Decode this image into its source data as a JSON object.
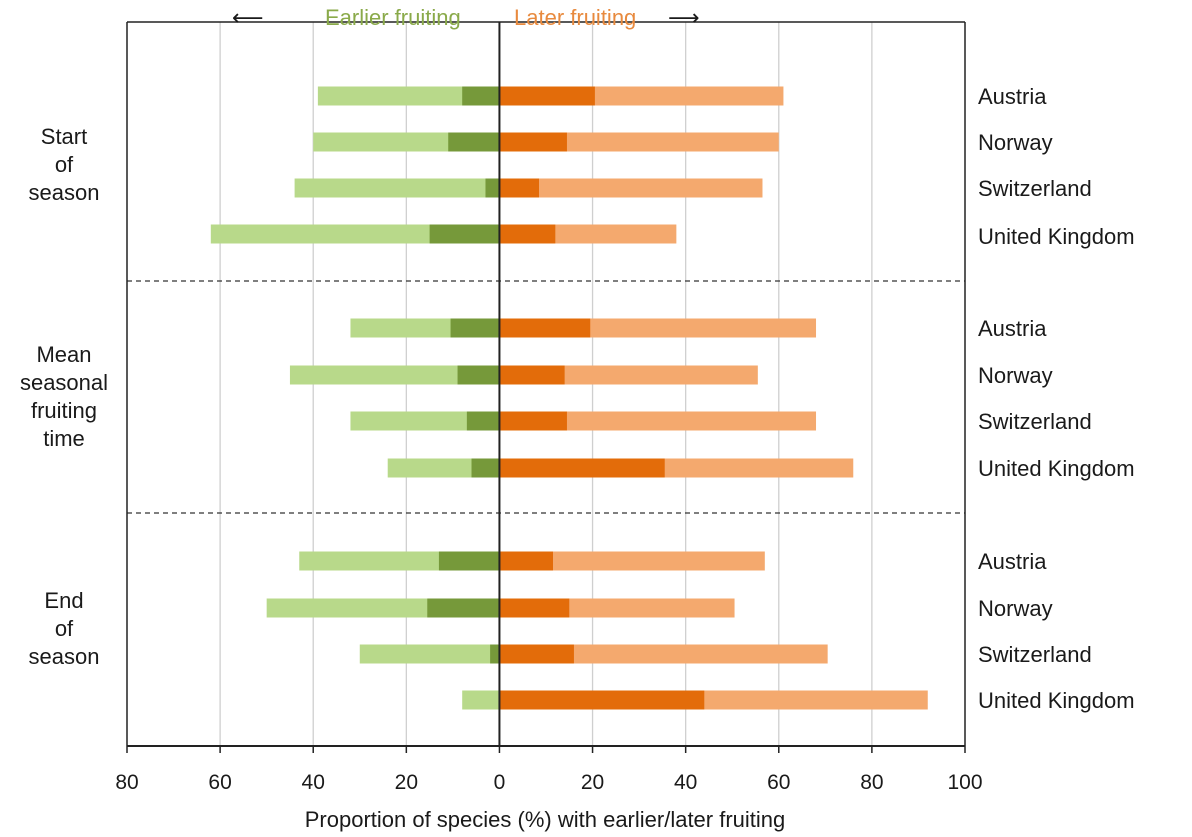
{
  "header": {
    "earlier_arrow": "⟵",
    "earlier_label": "Earlier fruiting",
    "later_label": "Later fruiting",
    "later_arrow": "⟶"
  },
  "chart_data": {
    "type": "bar",
    "orientation": "horizontal",
    "stacked": true,
    "xlabel": "Proportion of species (%) with earlier/later fruiting",
    "xlim": [
      -80,
      100
    ],
    "x_ticks": [
      -80,
      -60,
      -40,
      -20,
      0,
      20,
      40,
      60,
      80,
      100
    ],
    "x_tick_labels": [
      "80",
      "60",
      "40",
      "20",
      "0",
      "20",
      "40",
      "60",
      "80",
      "100"
    ],
    "grid": "vertical",
    "colors": {
      "earlier_significant": "#76993a",
      "earlier_total": "#b8d98a",
      "later_significant": "#e36c0a",
      "later_total": "#f4a96e",
      "earlier_text": "#8aaa4a",
      "later_text": "#e88a3e"
    },
    "groups": [
      {
        "label": "Start\nof\nseason",
        "rows": [
          {
            "country": "Austria",
            "earlier_total": 39,
            "earlier_significant": 8,
            "later_significant": 20.5,
            "later_total": 61
          },
          {
            "country": "Norway",
            "earlier_total": 40,
            "earlier_significant": 11,
            "later_significant": 14.5,
            "later_total": 60
          },
          {
            "country": "Switzerland",
            "earlier_total": 44,
            "earlier_significant": 3,
            "later_significant": 8.5,
            "later_total": 56.5
          },
          {
            "country": "United Kingdom",
            "earlier_total": 62,
            "earlier_significant": 15,
            "later_significant": 12,
            "later_total": 38
          }
        ]
      },
      {
        "label": "Mean\nseasonal\nfruiting\ntime",
        "rows": [
          {
            "country": "Austria",
            "earlier_total": 32,
            "earlier_significant": 10.5,
            "later_significant": 19.5,
            "later_total": 68
          },
          {
            "country": "Norway",
            "earlier_total": 45,
            "earlier_significant": 9,
            "later_significant": 14,
            "later_total": 55.5
          },
          {
            "country": "Switzerland",
            "earlier_total": 32,
            "earlier_significant": 7,
            "later_significant": 14.5,
            "later_total": 68
          },
          {
            "country": "United Kingdom",
            "earlier_total": 24,
            "earlier_significant": 6,
            "later_significant": 35.5,
            "later_total": 76
          }
        ]
      },
      {
        "label": "End\nof\nseason",
        "rows": [
          {
            "country": "Austria",
            "earlier_total": 43,
            "earlier_significant": 13,
            "later_significant": 11.5,
            "later_total": 57
          },
          {
            "country": "Norway",
            "earlier_total": 50,
            "earlier_significant": 15.5,
            "later_significant": 15,
            "later_total": 50.5
          },
          {
            "country": "Switzerland",
            "earlier_total": 30,
            "earlier_significant": 2,
            "later_significant": 16,
            "later_total": 70.5
          },
          {
            "country": "United Kingdom",
            "earlier_total": 8,
            "earlier_significant": 0,
            "later_significant": 44,
            "later_total": 92
          }
        ]
      }
    ]
  }
}
